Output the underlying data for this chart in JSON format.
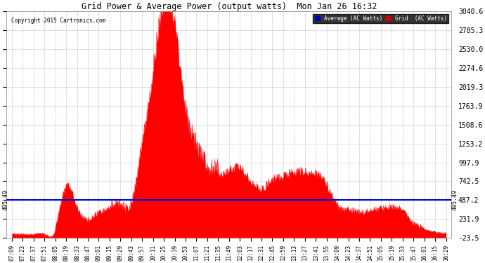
{
  "title": "Grid Power & Average Power (output watts)  Mon Jan 26 16:32",
  "copyright": "Copyright 2015 Cartronics.com",
  "background_color": "#ffffff",
  "plot_bg_color": "#ffffff",
  "grid_color": "#bbbbbb",
  "fill_color": "#ff0000",
  "line_color": "#ff0000",
  "avg_line_color": "#0000cc",
  "avg_line_value": 495.49,
  "yticks": [
    3040.6,
    2785.3,
    2530.0,
    2274.6,
    2019.3,
    1763.9,
    1508.6,
    1253.2,
    997.9,
    742.5,
    487.2,
    231.9,
    -23.5
  ],
  "ymin": -23.5,
  "ymax": 3040.6,
  "legend_avg_label": "Average (AC Watts)",
  "legend_grid_label": "Grid  (AC Watts)",
  "legend_avg_bg": "#0000bb",
  "legend_grid_bg": "#cc0000",
  "xtick_labels": [
    "07:09",
    "07:23",
    "07:37",
    "07:51",
    "08:05",
    "08:19",
    "08:33",
    "08:47",
    "09:01",
    "09:15",
    "09:29",
    "09:43",
    "09:57",
    "10:11",
    "10:25",
    "10:39",
    "10:53",
    "11:07",
    "11:21",
    "11:35",
    "11:49",
    "12:03",
    "12:17",
    "12:31",
    "12:45",
    "12:59",
    "13:13",
    "13:27",
    "13:41",
    "13:55",
    "14:09",
    "14:23",
    "14:37",
    "14:51",
    "15:05",
    "15:19",
    "15:33",
    "15:47",
    "16:01",
    "16:15",
    "16:29"
  ],
  "key_values": [
    20,
    20,
    20,
    20,
    80,
    650,
    350,
    200,
    280,
    350,
    350,
    380,
    1200,
    2100,
    3040,
    2700,
    1580,
    1100,
    820,
    750,
    820,
    860,
    680,
    590,
    700,
    750,
    810,
    820,
    790,
    640,
    370,
    330,
    290,
    310,
    340,
    360,
    310,
    140,
    80,
    50,
    30
  ]
}
